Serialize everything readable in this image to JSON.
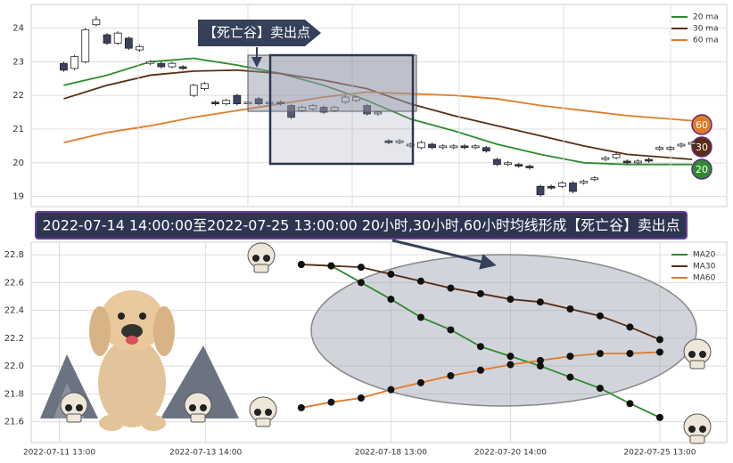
{
  "chart_data": [
    {
      "type": "candlestick",
      "open": [
        22.95,
        22.8,
        23.0,
        24.1,
        23.8,
        23.55,
        23.7,
        23.35,
        22.95,
        22.95,
        22.85,
        22.85,
        22.0,
        22.2,
        21.8,
        21.75,
        22.0,
        21.75,
        21.9,
        21.75,
        21.8,
        21.7,
        21.55,
        21.6,
        21.65,
        21.55,
        21.8,
        21.85,
        21.7,
        21.45,
        20.65,
        20.6,
        20.5,
        20.45,
        20.55,
        20.45,
        20.45,
        20.5,
        20.45,
        20.45,
        20.1,
        19.95,
        19.95,
        19.9,
        19.3,
        19.3,
        19.3,
        19.4,
        19.4,
        19.5,
        20.1,
        20.15,
        20.05,
        20.0,
        20.1,
        20.4,
        20.4,
        20.5,
        20.55
      ],
      "close": [
        22.75,
        23.15,
        23.95,
        24.25,
        23.55,
        23.85,
        23.4,
        23.45,
        23.0,
        22.85,
        22.95,
        22.8,
        22.3,
        22.35,
        21.75,
        21.85,
        21.75,
        21.8,
        21.75,
        21.8,
        21.75,
        21.35,
        21.65,
        21.7,
        21.5,
        21.65,
        21.95,
        21.95,
        21.45,
        21.5,
        20.6,
        20.65,
        20.55,
        20.6,
        20.45,
        20.5,
        20.5,
        20.45,
        20.5,
        20.35,
        19.95,
        20.0,
        19.9,
        19.85,
        19.05,
        19.25,
        19.4,
        19.15,
        19.45,
        19.55,
        20.15,
        20.25,
        20.0,
        20.05,
        20.05,
        20.45,
        20.45,
        20.55,
        20.6
      ],
      "high": [
        23.0,
        23.2,
        24.0,
        24.35,
        23.85,
        23.9,
        23.75,
        23.5,
        23.05,
        23.0,
        23.0,
        22.9,
        22.35,
        22.4,
        21.85,
        21.9,
        22.05,
        21.85,
        21.95,
        21.85,
        21.85,
        21.75,
        21.7,
        21.75,
        21.7,
        21.7,
        22.0,
        22.0,
        21.75,
        21.55,
        20.7,
        20.7,
        20.6,
        20.65,
        20.6,
        20.55,
        20.55,
        20.55,
        20.55,
        20.5,
        20.15,
        20.05,
        20.0,
        19.95,
        19.35,
        19.35,
        19.45,
        19.45,
        19.5,
        19.6,
        20.2,
        20.3,
        20.1,
        20.1,
        20.15,
        20.5,
        20.5,
        20.6,
        20.65
      ],
      "low": [
        22.7,
        22.75,
        22.95,
        24.05,
        23.5,
        23.5,
        23.35,
        23.3,
        22.9,
        22.8,
        22.8,
        22.75,
        21.95,
        22.15,
        21.7,
        21.7,
        21.7,
        21.7,
        21.7,
        21.7,
        21.7,
        21.3,
        21.5,
        21.55,
        21.45,
        21.5,
        21.75,
        21.8,
        21.4,
        21.4,
        20.55,
        20.55,
        20.45,
        20.4,
        20.4,
        20.4,
        20.4,
        20.4,
        20.4,
        20.3,
        19.9,
        19.9,
        19.85,
        19.8,
        19.0,
        19.2,
        19.25,
        19.1,
        19.35,
        19.45,
        20.05,
        20.1,
        19.95,
        19.95,
        20.0,
        20.35,
        20.35,
        20.45,
        20.5
      ],
      "up_color": "#ffffff",
      "down_color": "#3b4261",
      "series": [
        {
          "name": "20 ma",
          "color": "#2e8b2e",
          "end_label": 20,
          "x": [
            0,
            4,
            8,
            12,
            16,
            20,
            24,
            28,
            32,
            36,
            40,
            44,
            48,
            52,
            58
          ],
          "values": [
            22.3,
            22.6,
            23.0,
            23.1,
            22.9,
            22.65,
            22.3,
            21.85,
            21.3,
            20.95,
            20.55,
            20.25,
            20.0,
            19.95,
            19.95
          ]
        },
        {
          "name": "30 ma",
          "color": "#5a2d14",
          "end_label": 30,
          "x": [
            0,
            4,
            8,
            12,
            16,
            20,
            24,
            28,
            32,
            36,
            40,
            44,
            48,
            52,
            58
          ],
          "values": [
            21.9,
            22.3,
            22.6,
            22.72,
            22.75,
            22.65,
            22.45,
            22.2,
            21.75,
            21.4,
            21.1,
            20.8,
            20.5,
            20.25,
            20.1
          ]
        },
        {
          "name": "60 ma",
          "color": "#e07b28",
          "end_label": 60,
          "x": [
            0,
            4,
            8,
            12,
            16,
            20,
            24,
            28,
            32,
            36,
            40,
            44,
            48,
            52,
            58
          ],
          "values": [
            20.6,
            20.9,
            21.1,
            21.35,
            21.55,
            21.75,
            21.95,
            22.1,
            22.05,
            22.0,
            21.9,
            21.7,
            21.55,
            21.4,
            21.25
          ]
        }
      ],
      "xlim": [
        -3,
        61.2
      ],
      "ylim": [
        18.7,
        24.7
      ],
      "yticks": [
        19,
        20,
        21,
        22,
        23,
        24
      ],
      "grid": true,
      "legend": "upper right",
      "annotation": "【死亡谷】卖出点"
    },
    {
      "type": "line",
      "x": [
        0,
        1,
        2,
        3,
        4,
        5,
        6,
        7,
        8,
        9,
        10,
        11,
        12
      ],
      "series": [
        {
          "name": "MA20",
          "color": "#2e8b2e",
          "values": [
            22.73,
            22.72,
            22.6,
            22.48,
            22.35,
            22.26,
            22.14,
            22.07,
            22.0,
            21.92,
            21.84,
            21.73,
            21.63
          ]
        },
        {
          "name": "MA30",
          "color": "#5a2d14",
          "values": [
            22.73,
            22.72,
            22.71,
            22.66,
            22.61,
            22.56,
            22.52,
            22.48,
            22.46,
            22.41,
            22.36,
            22.28,
            22.19
          ]
        },
        {
          "name": "MA60",
          "color": "#e07b28",
          "values": [
            21.7,
            21.74,
            21.77,
            21.83,
            21.88,
            21.93,
            21.97,
            22.01,
            22.04,
            22.07,
            22.09,
            22.09,
            22.1
          ]
        }
      ],
      "marker_color": "#111111",
      "xlim": [
        -9.04,
        14.24
      ],
      "xticks": [
        {
          "value": -8.1,
          "label": "2022-07-11 13:00"
        },
        {
          "value": -3.2,
          "label": "2022-07-13 14:00"
        },
        {
          "value": 3,
          "label": "2022-07-18 13:00"
        },
        {
          "value": 7,
          "label": "2022-07-20 14:00"
        },
        {
          "value": 12,
          "label": "2022-07-25 13:00"
        }
      ],
      "ylim": [
        21.45,
        22.89
      ],
      "yticks": [
        21.6,
        21.8,
        22.0,
        22.2,
        22.4,
        22.6,
        22.8
      ],
      "yticklabels": [
        "21.6",
        "21.8",
        "22.0",
        "22.2",
        "22.4",
        "22.6",
        "22.8"
      ],
      "grid": true,
      "legend": "upper right"
    }
  ],
  "banner": "2022-07-14 14:00:00至2022-07-25 13:00:00 20小时,30小时,60小时均线形成【死亡谷】卖出点"
}
